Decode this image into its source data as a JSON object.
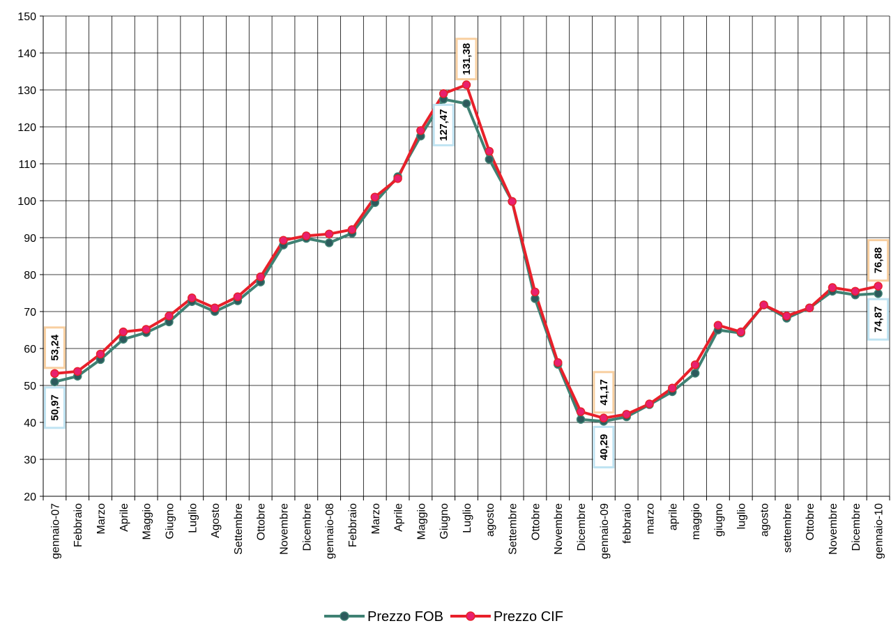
{
  "chart_data": {
    "type": "line",
    "categories": [
      "gennaio-07",
      "Febbraio",
      "Marzo",
      "Aprile",
      "Maggio",
      "Giugno",
      "Luglio",
      "Agosto",
      "Settembre",
      "Ottobre",
      "Novembre",
      "Dicembre",
      "gennaio-08",
      "Febbraio",
      "Marzo",
      "Aprile",
      "Maggio",
      "Giugno",
      "Luglio",
      "agosto",
      "Settembre",
      "Ottobre",
      "Novembre",
      "Dicembre",
      "gennaio-09",
      "febbraio",
      "marzo",
      "aprile",
      "maggio",
      "giugno",
      "luglio",
      "agosto",
      "settembre",
      "Ottobre",
      "Novembre",
      "Dicembre",
      "gennaio-10"
    ],
    "series": [
      {
        "name": "Prezzo FOB",
        "color": "#3f8173",
        "marker_color": "#2c5a5c",
        "label_border": "#bfe3f2",
        "values": [
          50.97,
          52.5,
          57,
          62.5,
          64.3,
          67.2,
          72.7,
          70,
          72.9,
          78,
          88,
          89.8,
          88.6,
          91.2,
          99.5,
          106.5,
          117.5,
          127.47,
          126.3,
          111.2,
          99.8,
          73.5,
          55.7,
          40.8,
          40.29,
          41.5,
          44.8,
          48.3,
          53.3,
          65,
          64.2,
          71.8,
          68.2,
          71,
          75.5,
          74.5,
          74.87
        ],
        "value_labels": [
          "50,97",
          null,
          null,
          null,
          null,
          null,
          null,
          null,
          null,
          null,
          null,
          null,
          null,
          null,
          null,
          null,
          null,
          "127,47",
          null,
          null,
          null,
          null,
          null,
          null,
          "40,29",
          null,
          null,
          null,
          null,
          null,
          null,
          null,
          null,
          null,
          null,
          null,
          "74,87"
        ]
      },
      {
        "name": "Prezzo CIF",
        "color": "#e8202a",
        "marker_color": "#e8206e",
        "label_border": "#f8cfa0",
        "values": [
          53.24,
          53.8,
          58.5,
          64.5,
          65.2,
          68.8,
          73.7,
          71,
          74,
          79.4,
          89.3,
          90.5,
          91,
          92.2,
          101,
          106,
          119,
          129,
          131.38,
          113.4,
          99.8,
          75.3,
          56.2,
          42.9,
          41.17,
          42.2,
          45,
          49.3,
          55.6,
          66.3,
          64.5,
          71.8,
          68.8,
          71,
          76.5,
          75.5,
          76.88
        ],
        "value_labels": [
          "53,24",
          null,
          null,
          null,
          null,
          null,
          null,
          null,
          null,
          null,
          null,
          null,
          null,
          null,
          null,
          null,
          null,
          null,
          "131,38",
          null,
          null,
          null,
          null,
          null,
          "41,17",
          null,
          null,
          null,
          null,
          null,
          null,
          null,
          null,
          null,
          null,
          null,
          "76,88"
        ]
      }
    ],
    "ylim": [
      20,
      150
    ],
    "yticks": [
      20,
      30,
      40,
      50,
      60,
      70,
      80,
      90,
      100,
      110,
      120,
      130,
      140,
      150
    ],
    "grid": true,
    "legend": "bottom"
  }
}
